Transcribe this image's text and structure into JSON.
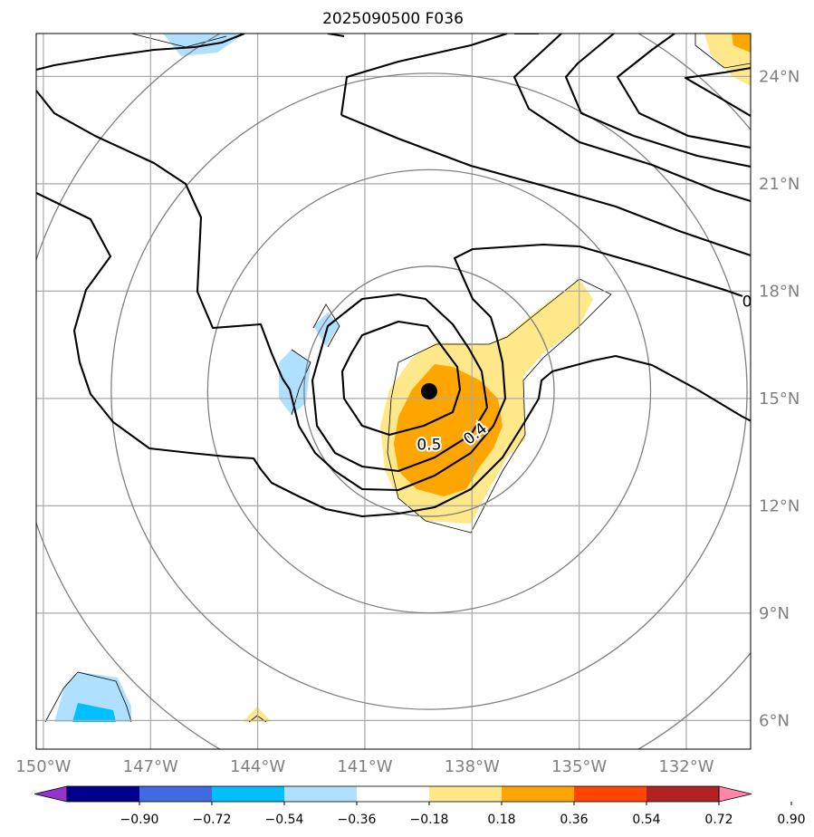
{
  "title": "2025090500 F036",
  "map": {
    "lon_range": [
      -150.2,
      -130.2
    ],
    "lat_range": [
      5.2,
      25.2
    ],
    "lon_ticks": [
      {
        "value": -150,
        "label": "150°W"
      },
      {
        "value": -147,
        "label": "147°W"
      },
      {
        "value": -144,
        "label": "144°W"
      },
      {
        "value": -141,
        "label": "141°W"
      },
      {
        "value": -138,
        "label": "138°W"
      },
      {
        "value": -135,
        "label": "135°W"
      },
      {
        "value": -132,
        "label": "132°W"
      }
    ],
    "lat_ticks": [
      {
        "value": 24,
        "label": "24°N"
      },
      {
        "value": 21,
        "label": "21°N"
      },
      {
        "value": 18,
        "label": "18°N"
      },
      {
        "value": 15,
        "label": "15°N"
      },
      {
        "value": 12,
        "label": "12°N"
      },
      {
        "value": 9,
        "label": "9°N"
      },
      {
        "value": 6,
        "label": "6°N"
      }
    ],
    "storm_center": {
      "lon": -139.2,
      "lat": 15.2
    },
    "contour_labels": [
      {
        "text": "0.5",
        "lon": -139.2,
        "lat": 13.7,
        "rotate": 0
      },
      {
        "text": "0.4",
        "lon": -137.9,
        "lat": 14.0,
        "rotate": -38
      },
      {
        "text": "0",
        "lon": -130.3,
        "lat": 17.7,
        "rotate": 0
      }
    ],
    "range_ring_radii_deg": [
      3.5,
      6.2,
      8.9,
      11.6
    ],
    "colors": {
      "grid": "#a9a9a9",
      "ring": "#808080",
      "contour": "#000000",
      "center": "#000000"
    }
  },
  "colorbar": {
    "ticks": [
      "−0.90",
      "−0.72",
      "−0.54",
      "−0.36",
      "−0.18",
      "0.18",
      "0.36",
      "0.54",
      "0.72",
      "0.90"
    ],
    "colors": [
      "#9932cc",
      "#00008b",
      "#4169e1",
      "#00bfff",
      "#b0e0ff",
      "#ffffff",
      "#ffe88a",
      "#ffa500",
      "#ff4500",
      "#b22222",
      "#ff88aa"
    ]
  }
}
